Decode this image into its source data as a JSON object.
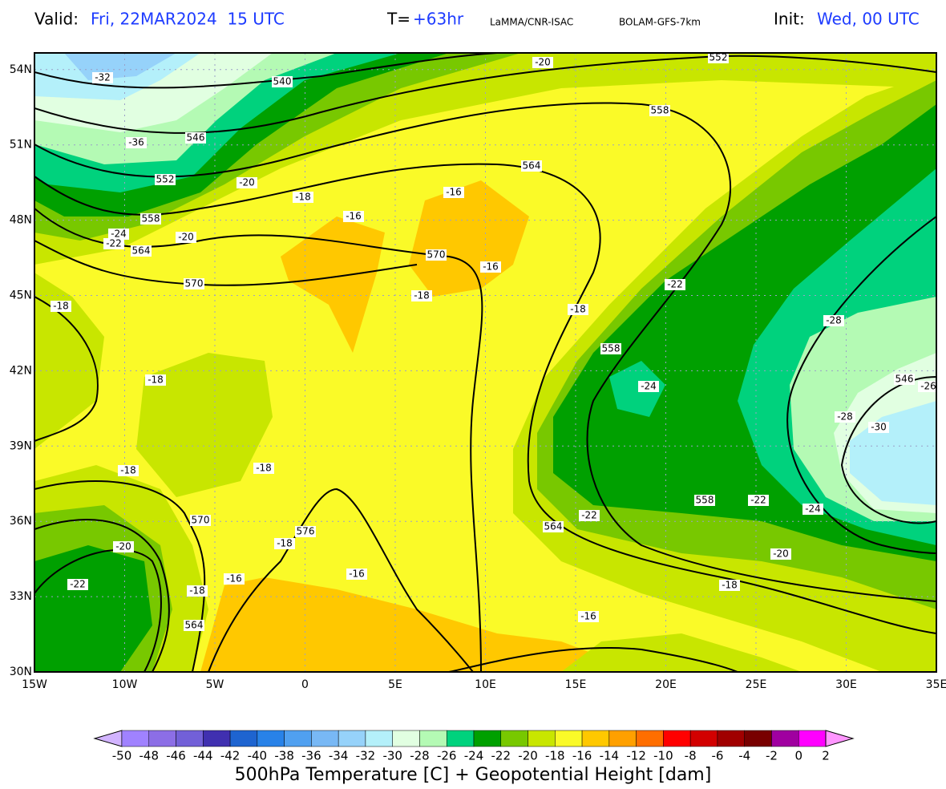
{
  "header": {
    "valid_label": "Valid:",
    "valid_value": "Fri, 22MAR2024  15 UTC",
    "t_label": "T=",
    "t_value": "+63hr",
    "source": "LaMMA/CNR-ISAC",
    "model": "BOLAM-GFS-7km",
    "init_label": "Init:",
    "init_value": "Wed, 00 UTC"
  },
  "map": {
    "lat_labels": [
      "30N",
      "33N",
      "36N",
      "39N",
      "42N",
      "45N",
      "48N",
      "51N",
      "54N"
    ],
    "lon_labels": [
      "15W",
      "10W",
      "5W",
      "0",
      "5E",
      "10E",
      "15E",
      "20E",
      "25E",
      "30E",
      "35E"
    ],
    "contour_labels": [
      -32,
      540,
      -20,
      552,
      -36,
      546,
      552,
      -20,
      -18,
      -16,
      564,
      558,
      -16,
      558,
      -24,
      -22,
      -20,
      564,
      570,
      -16,
      570,
      -22,
      -18,
      -18,
      -18,
      -28,
      558,
      -24,
      546,
      -26,
      -18,
      -28,
      -30,
      -18,
      -18,
      558,
      -22,
      -24,
      -22,
      570,
      576,
      -18,
      564,
      -20,
      -20,
      -22,
      -16,
      -16,
      -18,
      -18,
      -16,
      564
    ]
  },
  "colorbar": {
    "labels": [
      -50,
      -48,
      -46,
      -44,
      -42,
      -40,
      -38,
      -36,
      -34,
      -32,
      -30,
      -28,
      -26,
      -24,
      -22,
      -20,
      -18,
      -16,
      -14,
      -12,
      -10,
      -8,
      -6,
      -4,
      -2,
      0,
      2
    ],
    "colors": [
      "#d2b4ff",
      "#a082ff",
      "#8c6ee6",
      "#7260d8",
      "#4030b0",
      "#1e64d0",
      "#2882e8",
      "#50a0f0",
      "#78b8f5",
      "#96d2fa",
      "#b4f0fa",
      "#e1ffe1",
      "#b4fab4",
      "#00d27d",
      "#00a000",
      "#78c800",
      "#c8e600",
      "#fafa28",
      "#ffc800",
      "#ffa000",
      "#ff6e00",
      "#ff0000",
      "#d20000",
      "#a00000",
      "#780000",
      "#a000a0",
      "#ff00ff",
      "#ff96ff"
    ],
    "title": "500hPa Temperature [C] + Geopotential Height [dam]"
  }
}
